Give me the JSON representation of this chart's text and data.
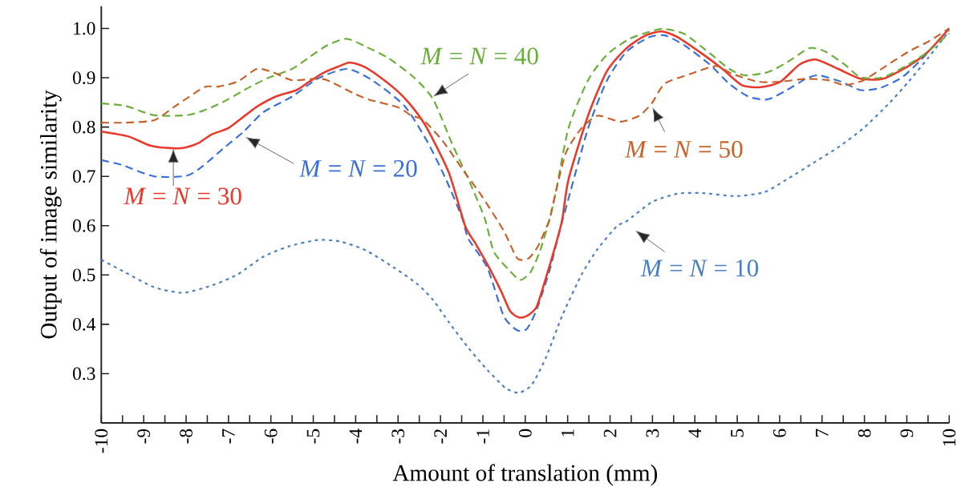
{
  "chart_data": {
    "type": "line",
    "xlabel": "Amount of translation (mm)",
    "ylabel": "Output of image similarity",
    "xlim": [
      -10,
      10
    ],
    "ylim": [
      0.2,
      1.045
    ],
    "xticks": [
      -10,
      -9,
      -8,
      -7,
      -6,
      -5,
      -4,
      -3,
      -2,
      -1,
      0,
      1,
      2,
      3,
      4,
      5,
      6,
      7,
      8,
      9,
      10
    ],
    "yticks": [
      {
        "value": 0.3,
        "label": "0.3"
      },
      {
        "value": 0.4,
        "label": "0.4"
      },
      {
        "value": 0.5,
        "label": "0.5"
      },
      {
        "value": 0.6,
        "label": "0.6"
      },
      {
        "value": 0.7,
        "label": "0.7"
      },
      {
        "value": 0.8,
        "label": "0.8"
      },
      {
        "value": 0.9,
        "label": "0.9"
      },
      {
        "value": 1.0,
        "label": "1.0"
      }
    ],
    "marker": "none",
    "series": [
      {
        "name": "*M* = *N* = 10",
        "color": "#4a7fc0",
        "line_style": "dotted",
        "x": [
          -10,
          -9.43,
          -8.75,
          -8.07,
          -7.39,
          -6.79,
          -6.18,
          -5.58,
          -4.9,
          -4.37,
          -3.76,
          -3.08,
          -2.55,
          -2.17,
          -1.8,
          -1.34,
          -0.89,
          -0.51,
          -0.41,
          -0.15,
          0.15,
          0.49,
          0.87,
          1.33,
          1.71,
          2.16,
          2.39,
          2.99,
          3.6,
          4.2,
          4.96,
          5.64,
          6.17,
          6.77,
          7.38,
          7.98,
          8.59,
          9.04,
          9.5,
          10
        ],
        "values": [
          0.531,
          0.505,
          0.475,
          0.464,
          0.479,
          0.501,
          0.537,
          0.558,
          0.571,
          0.568,
          0.55,
          0.514,
          0.482,
          0.449,
          0.404,
          0.352,
          0.307,
          0.274,
          0.268,
          0.261,
          0.277,
          0.333,
          0.417,
          0.501,
          0.553,
          0.599,
          0.609,
          0.648,
          0.665,
          0.666,
          0.66,
          0.668,
          0.694,
          0.726,
          0.759,
          0.798,
          0.849,
          0.892,
          0.94,
          0.995
        ]
      },
      {
        "name": "*M* = *N* = 20",
        "color": "#3a6fd8",
        "line_style": "dashed",
        "x": [
          -10,
          -9.51,
          -8.75,
          -8.0,
          -7.62,
          -7.09,
          -6.64,
          -6.18,
          -5.5,
          -4.9,
          -4.21,
          -3.61,
          -2.85,
          -2.32,
          -1.87,
          -1.49,
          -1.34,
          -0.89,
          -0.51,
          -0.19,
          0.04,
          0.27,
          0.57,
          0.8,
          1.02,
          1.48,
          1.93,
          2.39,
          2.92,
          3.29,
          3.75,
          4.35,
          4.81,
          5.26,
          5.71,
          6.17,
          6.62,
          6.92,
          7.45,
          7.91,
          8.36,
          8.89,
          9.34,
          9.72,
          10
        ],
        "values": [
          0.733,
          0.723,
          0.7,
          0.701,
          0.72,
          0.759,
          0.791,
          0.83,
          0.862,
          0.898,
          0.918,
          0.895,
          0.843,
          0.772,
          0.694,
          0.616,
          0.573,
          0.514,
          0.417,
          0.388,
          0.391,
          0.43,
          0.508,
          0.586,
          0.655,
          0.797,
          0.895,
          0.953,
          0.982,
          0.986,
          0.966,
          0.927,
          0.888,
          0.862,
          0.856,
          0.875,
          0.898,
          0.905,
          0.892,
          0.875,
          0.879,
          0.901,
          0.937,
          0.973,
          0.999
        ]
      },
      {
        "name": "*M* = *N* = 30",
        "color": "#e8392b",
        "line_style": "solid",
        "x": [
          -10,
          -9.36,
          -8.83,
          -8.3,
          -8.0,
          -7.7,
          -7.4,
          -7.0,
          -6.6,
          -6.3,
          -5.88,
          -5.4,
          -5.1,
          -4.74,
          -4.37,
          -4.14,
          -3.84,
          -3.53,
          -3.0,
          -2.63,
          -2.32,
          -1.8,
          -1.42,
          -1.19,
          -0.89,
          -0.58,
          -0.36,
          -0.15,
          0.04,
          0.27,
          0.49,
          0.72,
          0.87,
          1.02,
          1.48,
          1.93,
          2.39,
          2.84,
          3.22,
          3.6,
          4.2,
          4.65,
          5.11,
          5.56,
          6.02,
          6.47,
          6.85,
          7.38,
          7.91,
          8.44,
          9.04,
          9.5,
          10
        ],
        "values": [
          0.791,
          0.781,
          0.762,
          0.757,
          0.759,
          0.768,
          0.785,
          0.798,
          0.824,
          0.843,
          0.862,
          0.875,
          0.892,
          0.911,
          0.924,
          0.931,
          0.924,
          0.908,
          0.872,
          0.837,
          0.798,
          0.707,
          0.6,
          0.566,
          0.521,
          0.469,
          0.427,
          0.414,
          0.417,
          0.436,
          0.495,
          0.562,
          0.612,
          0.694,
          0.823,
          0.914,
          0.96,
          0.986,
          0.994,
          0.982,
          0.947,
          0.918,
          0.885,
          0.881,
          0.892,
          0.927,
          0.937,
          0.918,
          0.898,
          0.898,
          0.924,
          0.953,
          1.0
        ]
      },
      {
        "name": "*M* = *N* = 40",
        "color": "#6aae3a",
        "line_style": "dashed",
        "x": [
          -10,
          -9.43,
          -8.75,
          -7.92,
          -7.24,
          -6.48,
          -6.03,
          -5.5,
          -5.12,
          -4.67,
          -4.21,
          -3.76,
          -3.23,
          -2.63,
          -2.17,
          -1.72,
          -1.34,
          -0.96,
          -0.74,
          -0.36,
          -0.12,
          0.12,
          0.34,
          0.57,
          0.72,
          1.02,
          1.48,
          1.93,
          2.46,
          2.99,
          3.29,
          3.75,
          4.35,
          4.81,
          5.18,
          5.71,
          6.17,
          6.7,
          7.08,
          7.53,
          7.91,
          8.44,
          9.04,
          9.5,
          10
        ],
        "values": [
          0.848,
          0.843,
          0.824,
          0.825,
          0.846,
          0.882,
          0.901,
          0.918,
          0.94,
          0.966,
          0.979,
          0.963,
          0.94,
          0.901,
          0.856,
          0.765,
          0.694,
          0.616,
          0.547,
          0.508,
          0.49,
          0.505,
          0.547,
          0.612,
          0.668,
          0.798,
          0.895,
          0.947,
          0.979,
          0.995,
          0.999,
          0.989,
          0.95,
          0.918,
          0.905,
          0.911,
          0.931,
          0.96,
          0.953,
          0.927,
          0.901,
          0.901,
          0.927,
          0.953,
          0.99
        ]
      },
      {
        "name": "*M* = *N* = 50",
        "color": "#c8602a",
        "line_style": "dashed",
        "x": [
          -10,
          -9.43,
          -8.75,
          -8.3,
          -7.92,
          -7.54,
          -7.24,
          -6.79,
          -6.33,
          -5.95,
          -5.5,
          -4.97,
          -4.67,
          -4.06,
          -3.69,
          -3.0,
          -2.7,
          -2.4,
          -1.95,
          -1.42,
          -1.04,
          -0.51,
          -0.19,
          0.08,
          0.31,
          0.57,
          0.65,
          0.95,
          1.33,
          1.71,
          2.24,
          2.69,
          2.99,
          3.29,
          3.9,
          4.5,
          4.88,
          5.49,
          6.02,
          6.62,
          7.15,
          7.53,
          7.98,
          8.51,
          9.04,
          9.5,
          10
        ],
        "values": [
          0.809,
          0.809,
          0.814,
          0.84,
          0.862,
          0.882,
          0.882,
          0.892,
          0.918,
          0.911,
          0.895,
          0.898,
          0.895,
          0.869,
          0.856,
          0.84,
          0.824,
          0.814,
          0.772,
          0.707,
          0.662,
          0.59,
          0.534,
          0.534,
          0.56,
          0.612,
          0.642,
          0.746,
          0.798,
          0.823,
          0.811,
          0.823,
          0.849,
          0.888,
          0.908,
          0.924,
          0.908,
          0.892,
          0.892,
          0.898,
          0.895,
          0.885,
          0.895,
          0.924,
          0.953,
          0.973,
          1.0
        ]
      }
    ]
  }
}
